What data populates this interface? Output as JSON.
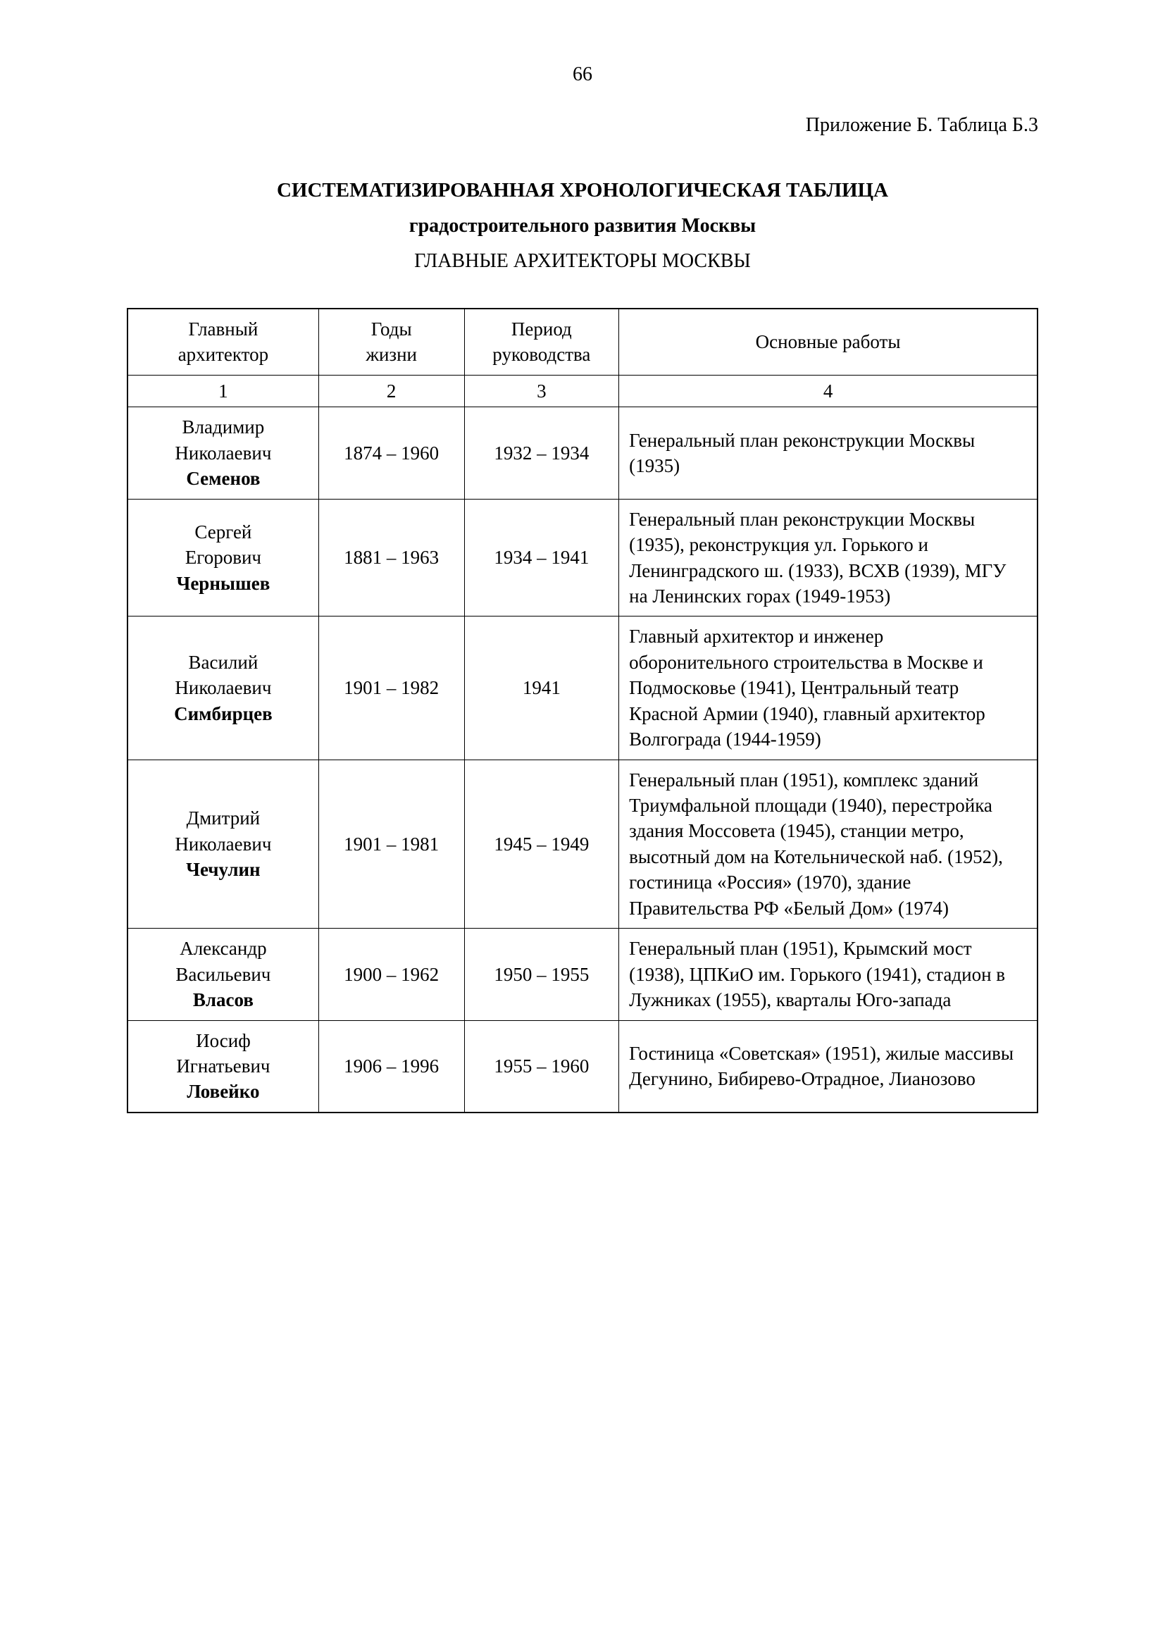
{
  "page_number": "66",
  "appendix_label": "Приложение Б. Таблица Б.3",
  "title": "СИСТЕМАТИЗИРОВАННАЯ ХРОНОЛОГИЧЕСКАЯ ТАБЛИЦА",
  "subtitle_bold": "градостроительного развития Москвы",
  "subtitle": "ГЛАВНЫЕ АРХИТЕКТОРЫ МОСКВЫ",
  "table": {
    "headers": {
      "col1_line1": "Главный",
      "col1_line2": "архитектор",
      "col2_line1": "Годы",
      "col2_line2": "жизни",
      "col3_line1": "Период",
      "col3_line2": "руководства",
      "col4": "Основные работы"
    },
    "col_numbers": [
      "1",
      "2",
      "3",
      "4"
    ],
    "rows": [
      {
        "first_name": "Владимир",
        "patronymic": "Николаевич",
        "surname": "Семенов",
        "years": "1874 – 1960",
        "period": "1932 – 1934",
        "works": "Генеральный план реконструкции Москвы (1935)"
      },
      {
        "first_name": "Сергей",
        "patronymic": "Егорович",
        "surname": "Чернышев",
        "years": "1881 – 1963",
        "period": "1934 – 1941",
        "works": "Генеральный план реконструкции Москвы (1935), реконструкция ул. Горького и Ленинградского ш. (1933), ВСХВ (1939), МГУ на Ленинских горах (1949-1953)"
      },
      {
        "first_name": "Василий",
        "patronymic": "Николаевич",
        "surname": "Симбирцев",
        "years": "1901 – 1982",
        "period": "1941",
        "works": "Главный архитектор и инженер оборонительного строительства в Москве и Подмосковье (1941), Центральный театр Красной Армии (1940), главный архитектор Волгограда (1944-1959)"
      },
      {
        "first_name": "Дмитрий",
        "patronymic": "Николаевич",
        "surname": "Чечулин",
        "years": "1901 – 1981",
        "period": "1945 – 1949",
        "works": "Генеральный план (1951), комплекс зданий Триумфальной площади (1940), перестройка здания Моссовета (1945), станции метро, высотный дом на Котельнической наб. (1952), гостиница «Россия» (1970), здание Правительства РФ «Белый Дом» (1974)"
      },
      {
        "first_name": "Александр",
        "patronymic": "Васильевич",
        "surname": "Власов",
        "years": "1900 – 1962",
        "period": "1950 – 1955",
        "works": "Генеральный план (1951), Крымский мост (1938), ЦПКиО им. Горького (1941), стадион в Лужниках (1955), кварталы Юго-запада"
      },
      {
        "first_name": "Иосиф",
        "patronymic": "Игнатьевич",
        "surname": "Ловейко",
        "years": "1906 – 1996",
        "period": "1955 – 1960",
        "works": "Гостиница «Советская» (1951), жилые массивы Дегунино, Бибирево-Отрадное, Лианозово"
      }
    ]
  }
}
